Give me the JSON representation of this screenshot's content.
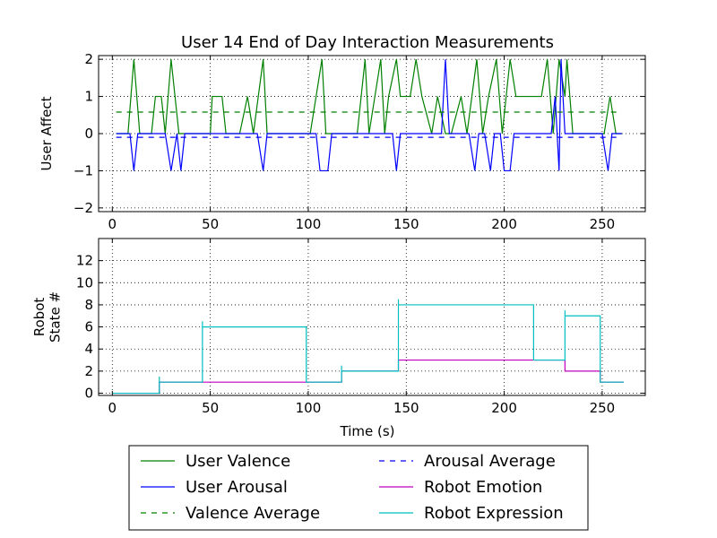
{
  "figure": {
    "title": "User 14 End of Day Interaction Measurements",
    "xlabel": "Time (s)"
  },
  "chart_data": [
    {
      "type": "line",
      "title": "User 14 End of Day Interaction Measurements",
      "xlabel": "",
      "ylabel": "User Affect",
      "xlim": [
        -7,
        272
      ],
      "ylim": [
        -2.1,
        2.1
      ],
      "xticks": [
        0,
        50,
        100,
        150,
        200,
        250
      ],
      "yticks": [
        -2,
        -1,
        0,
        1,
        2
      ],
      "xtick_labels": [
        "0",
        "50",
        "100",
        "150",
        "200",
        "250"
      ],
      "ytick_labels": [
        "−2",
        "−1",
        "0",
        "1",
        "2"
      ],
      "grid": true,
      "series": [
        {
          "name": "User Valence",
          "color": "#008000",
          "style": "solid",
          "points": [
            [
              2,
              0
            ],
            [
              8,
              0
            ],
            [
              11,
              2
            ],
            [
              14,
              0
            ],
            [
              20,
              0
            ],
            [
              22,
              1
            ],
            [
              25,
              1
            ],
            [
              27,
              0
            ],
            [
              30,
              2
            ],
            [
              34,
              0
            ],
            [
              37,
              0
            ],
            [
              40,
              0
            ],
            [
              50,
              0
            ],
            [
              51,
              1
            ],
            [
              56,
              1
            ],
            [
              58,
              0
            ],
            [
              65,
              0
            ],
            [
              69,
              1
            ],
            [
              72,
              0
            ],
            [
              77,
              2
            ],
            [
              79,
              0
            ],
            [
              101,
              0
            ],
            [
              107,
              2
            ],
            [
              109,
              0
            ],
            [
              112,
              0
            ],
            [
              125,
              0
            ],
            [
              129,
              2
            ],
            [
              131,
              0
            ],
            [
              134,
              1
            ],
            [
              137,
              2
            ],
            [
              139,
              0
            ],
            [
              141,
              1
            ],
            [
              145,
              2
            ],
            [
              147,
              1
            ],
            [
              152,
              1
            ],
            [
              155,
              2
            ],
            [
              158,
              1
            ],
            [
              163,
              0
            ],
            [
              166,
              1
            ],
            [
              170,
              0
            ],
            [
              173,
              0
            ],
            [
              178,
              1
            ],
            [
              181,
              0
            ],
            [
              186,
              2
            ],
            [
              189,
              0
            ],
            [
              192,
              1
            ],
            [
              196,
              2
            ],
            [
              199,
              0
            ],
            [
              203,
              2
            ],
            [
              206,
              1
            ],
            [
              219,
              1
            ],
            [
              222,
              2
            ],
            [
              225,
              0
            ],
            [
              228,
              2
            ],
            [
              231,
              1
            ],
            [
              232,
              2
            ],
            [
              235,
              0
            ],
            [
              245,
              0
            ],
            [
              251,
              0
            ],
            [
              254,
              1
            ],
            [
              257,
              0
            ],
            [
              260,
              0
            ]
          ]
        },
        {
          "name": "User Arousal",
          "color": "#0000ff",
          "style": "solid",
          "points": [
            [
              2,
              0
            ],
            [
              9,
              0
            ],
            [
              11,
              -1
            ],
            [
              13,
              0
            ],
            [
              27,
              0
            ],
            [
              30,
              -1
            ],
            [
              33,
              0
            ],
            [
              35,
              -1
            ],
            [
              37,
              0
            ],
            [
              74,
              0
            ],
            [
              77,
              -1
            ],
            [
              79,
              0
            ],
            [
              104,
              0
            ],
            [
              106,
              -1
            ],
            [
              110,
              -1
            ],
            [
              112,
              0
            ],
            [
              143,
              0
            ],
            [
              145,
              -1
            ],
            [
              147,
              0
            ],
            [
              168,
              0
            ],
            [
              170,
              2
            ],
            [
              172,
              0
            ],
            [
              182,
              0
            ],
            [
              185,
              -1
            ],
            [
              187,
              0
            ],
            [
              190,
              0
            ],
            [
              193,
              -1
            ],
            [
              195,
              0
            ],
            [
              198,
              0
            ],
            [
              200,
              -1
            ],
            [
              203,
              -1
            ],
            [
              205,
              0
            ],
            [
              224,
              0
            ],
            [
              226,
              1
            ],
            [
              228,
              -1
            ],
            [
              229,
              2
            ],
            [
              231,
              0
            ],
            [
              250,
              0
            ],
            [
              253,
              -1
            ],
            [
              255,
              0
            ],
            [
              260,
              0
            ]
          ]
        },
        {
          "name": "Valence Average",
          "color": "#008000",
          "style": "dashed",
          "points": [
            [
              2,
              0.58
            ],
            [
              260,
              0.58
            ]
          ]
        },
        {
          "name": "Arousal Average",
          "color": "#0000ff",
          "style": "dashed",
          "points": [
            [
              2,
              -0.1
            ],
            [
              260,
              -0.1
            ]
          ]
        }
      ]
    },
    {
      "type": "line",
      "title": "",
      "xlabel": "Time (s)",
      "ylabel": "Robot\nState #",
      "ylabel_lines": [
        "Robot",
        "State #"
      ],
      "xlim": [
        -7,
        272
      ],
      "ylim": [
        -0.2,
        14
      ],
      "xticks": [
        0,
        50,
        100,
        150,
        200,
        250
      ],
      "yticks": [
        0,
        2,
        4,
        6,
        8,
        10,
        12
      ],
      "xtick_labels": [
        "0",
        "50",
        "100",
        "150",
        "200",
        "250"
      ],
      "ytick_labels": [
        "0",
        "2",
        "4",
        "6",
        "8",
        "10",
        "12"
      ],
      "grid": true,
      "series": [
        {
          "name": "Robot Emotion",
          "color": "#bf00bf",
          "style": "solid",
          "points": [
            [
              0,
              0
            ],
            [
              24,
              0
            ],
            [
              24,
              1
            ],
            [
              100,
              1
            ],
            [
              100,
              1
            ],
            [
              117,
              1
            ],
            [
              117,
              2
            ],
            [
              146,
              2
            ],
            [
              146,
              3
            ],
            [
              231,
              3
            ],
            [
              231,
              2
            ],
            [
              249,
              2
            ],
            [
              249,
              1
            ],
            [
              261,
              1
            ]
          ]
        },
        {
          "name": "Robot Expression",
          "color": "#00bfbf",
          "style": "solid",
          "points": [
            [
              0,
              0
            ],
            [
              24,
              0
            ],
            [
              24,
              1.5
            ],
            [
              24,
              1
            ],
            [
              46,
              1
            ],
            [
              46,
              6.5
            ],
            [
              46,
              6
            ],
            [
              99,
              6
            ],
            [
              99,
              1
            ],
            [
              117,
              1
            ],
            [
              117,
              2.5
            ],
            [
              117,
              2
            ],
            [
              146,
              2
            ],
            [
              146,
              8.5
            ],
            [
              146,
              8
            ],
            [
              215,
              8
            ],
            [
              215,
              3
            ],
            [
              231,
              3
            ],
            [
              231,
              7.5
            ],
            [
              231,
              7
            ],
            [
              249,
              7
            ],
            [
              249,
              1
            ],
            [
              261,
              1
            ]
          ]
        }
      ]
    }
  ],
  "legend": {
    "placement": "bottom-center",
    "entries": [
      {
        "label": "User Valence",
        "color": "#008000",
        "style": "solid"
      },
      {
        "label": "User Arousal",
        "color": "#0000ff",
        "style": "solid"
      },
      {
        "label": "Valence Average",
        "color": "#008000",
        "style": "dashed"
      },
      {
        "label": "Arousal Average",
        "color": "#0000ff",
        "style": "dashed"
      },
      {
        "label": "Robot Emotion",
        "color": "#bf00bf",
        "style": "solid"
      },
      {
        "label": "Robot Expression",
        "color": "#00bfbf",
        "style": "solid"
      }
    ]
  }
}
